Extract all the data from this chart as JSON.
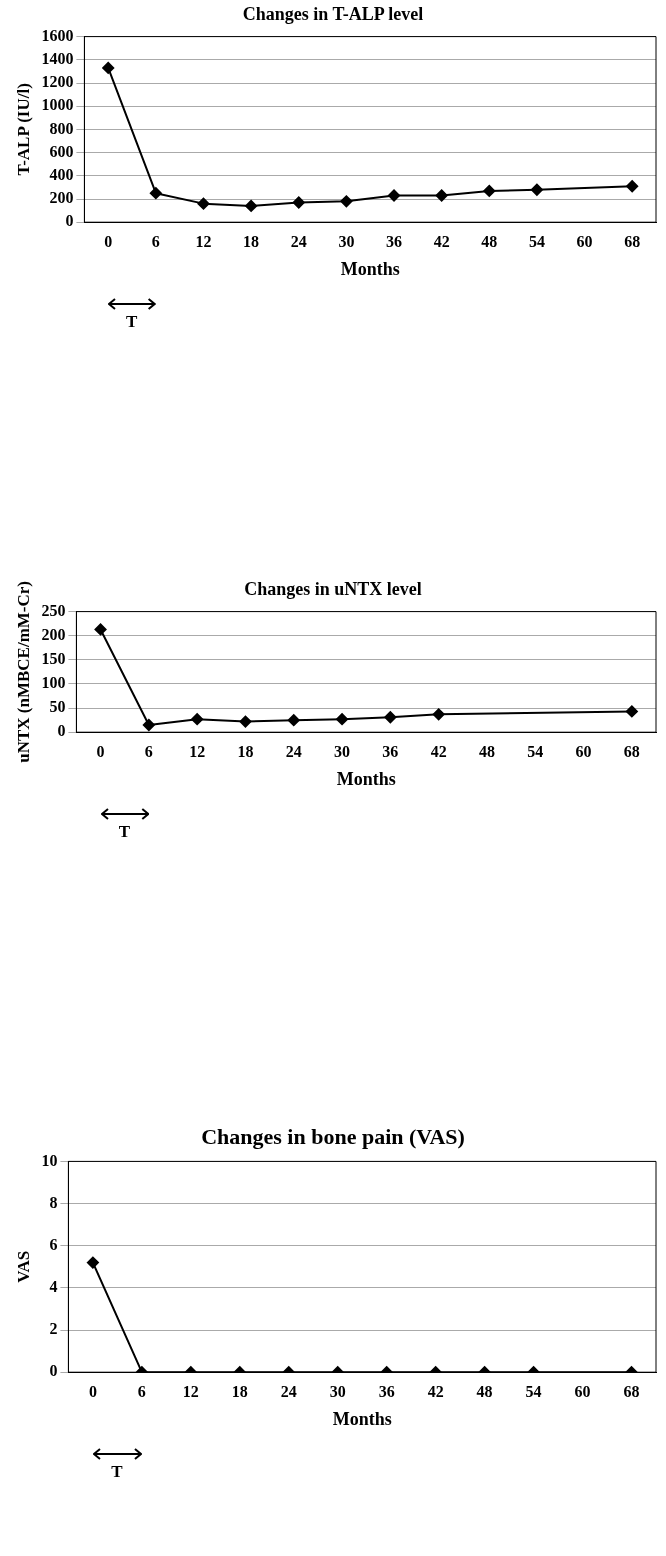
{
  "chart_data": [
    {
      "type": "line",
      "title": "Changes in T-ALP level",
      "xlabel": "Months",
      "ylabel": "T-ALP (IU/l)",
      "categories": [
        "0",
        "6",
        "12",
        "18",
        "24",
        "30",
        "36",
        "42",
        "48",
        "54",
        "60",
        "68"
      ],
      "series": [
        {
          "color": "#000000",
          "values": [
            1330,
            250,
            160,
            140,
            170,
            180,
            230,
            230,
            270,
            280,
            null,
            310
          ]
        }
      ],
      "ylim": [
        0,
        1600
      ],
      "yticks": [
        0,
        200,
        400,
        600,
        800,
        1000,
        1200,
        1400,
        1600
      ],
      "grid": "y",
      "legend": false,
      "marker": "diamond",
      "line_style": "solid",
      "annotations": [
        "T"
      ]
    },
    {
      "type": "line",
      "title": "Changes in uNTX level",
      "xlabel": "Months",
      "ylabel": "uNTX (nMBCE/mM-Cr)",
      "categories": [
        "0",
        "6",
        "12",
        "18",
        "24",
        "30",
        "36",
        "42",
        "48",
        "54",
        "60",
        "68"
      ],
      "series": [
        {
          "color": "#000000",
          "values": [
            213,
            15,
            27,
            22,
            25,
            27,
            31,
            37,
            null,
            null,
            null,
            43
          ]
        }
      ],
      "ylim": [
        0,
        250
      ],
      "yticks": [
        0,
        50,
        100,
        150,
        200,
        250
      ],
      "grid": "y",
      "legend": false,
      "marker": "diamond",
      "line_style": "solid",
      "annotations": [
        "T"
      ]
    },
    {
      "type": "line",
      "title": "Changes in bone pain (VAS)",
      "xlabel": "Months",
      "ylabel": "VAS",
      "categories": [
        "0",
        "6",
        "12",
        "18",
        "24",
        "30",
        "36",
        "42",
        "48",
        "54",
        "60",
        "68"
      ],
      "series": [
        {
          "color": "#000000",
          "values": [
            5.2,
            0,
            0,
            0,
            0,
            0,
            0,
            0,
            0,
            0,
            null,
            0
          ]
        }
      ],
      "ylim": [
        0,
        10
      ],
      "yticks": [
        0,
        2,
        4,
        6,
        8,
        10
      ],
      "grid": "y",
      "legend": false,
      "marker": "diamond",
      "line_style": "solid",
      "annotations": [
        "T"
      ]
    }
  ]
}
